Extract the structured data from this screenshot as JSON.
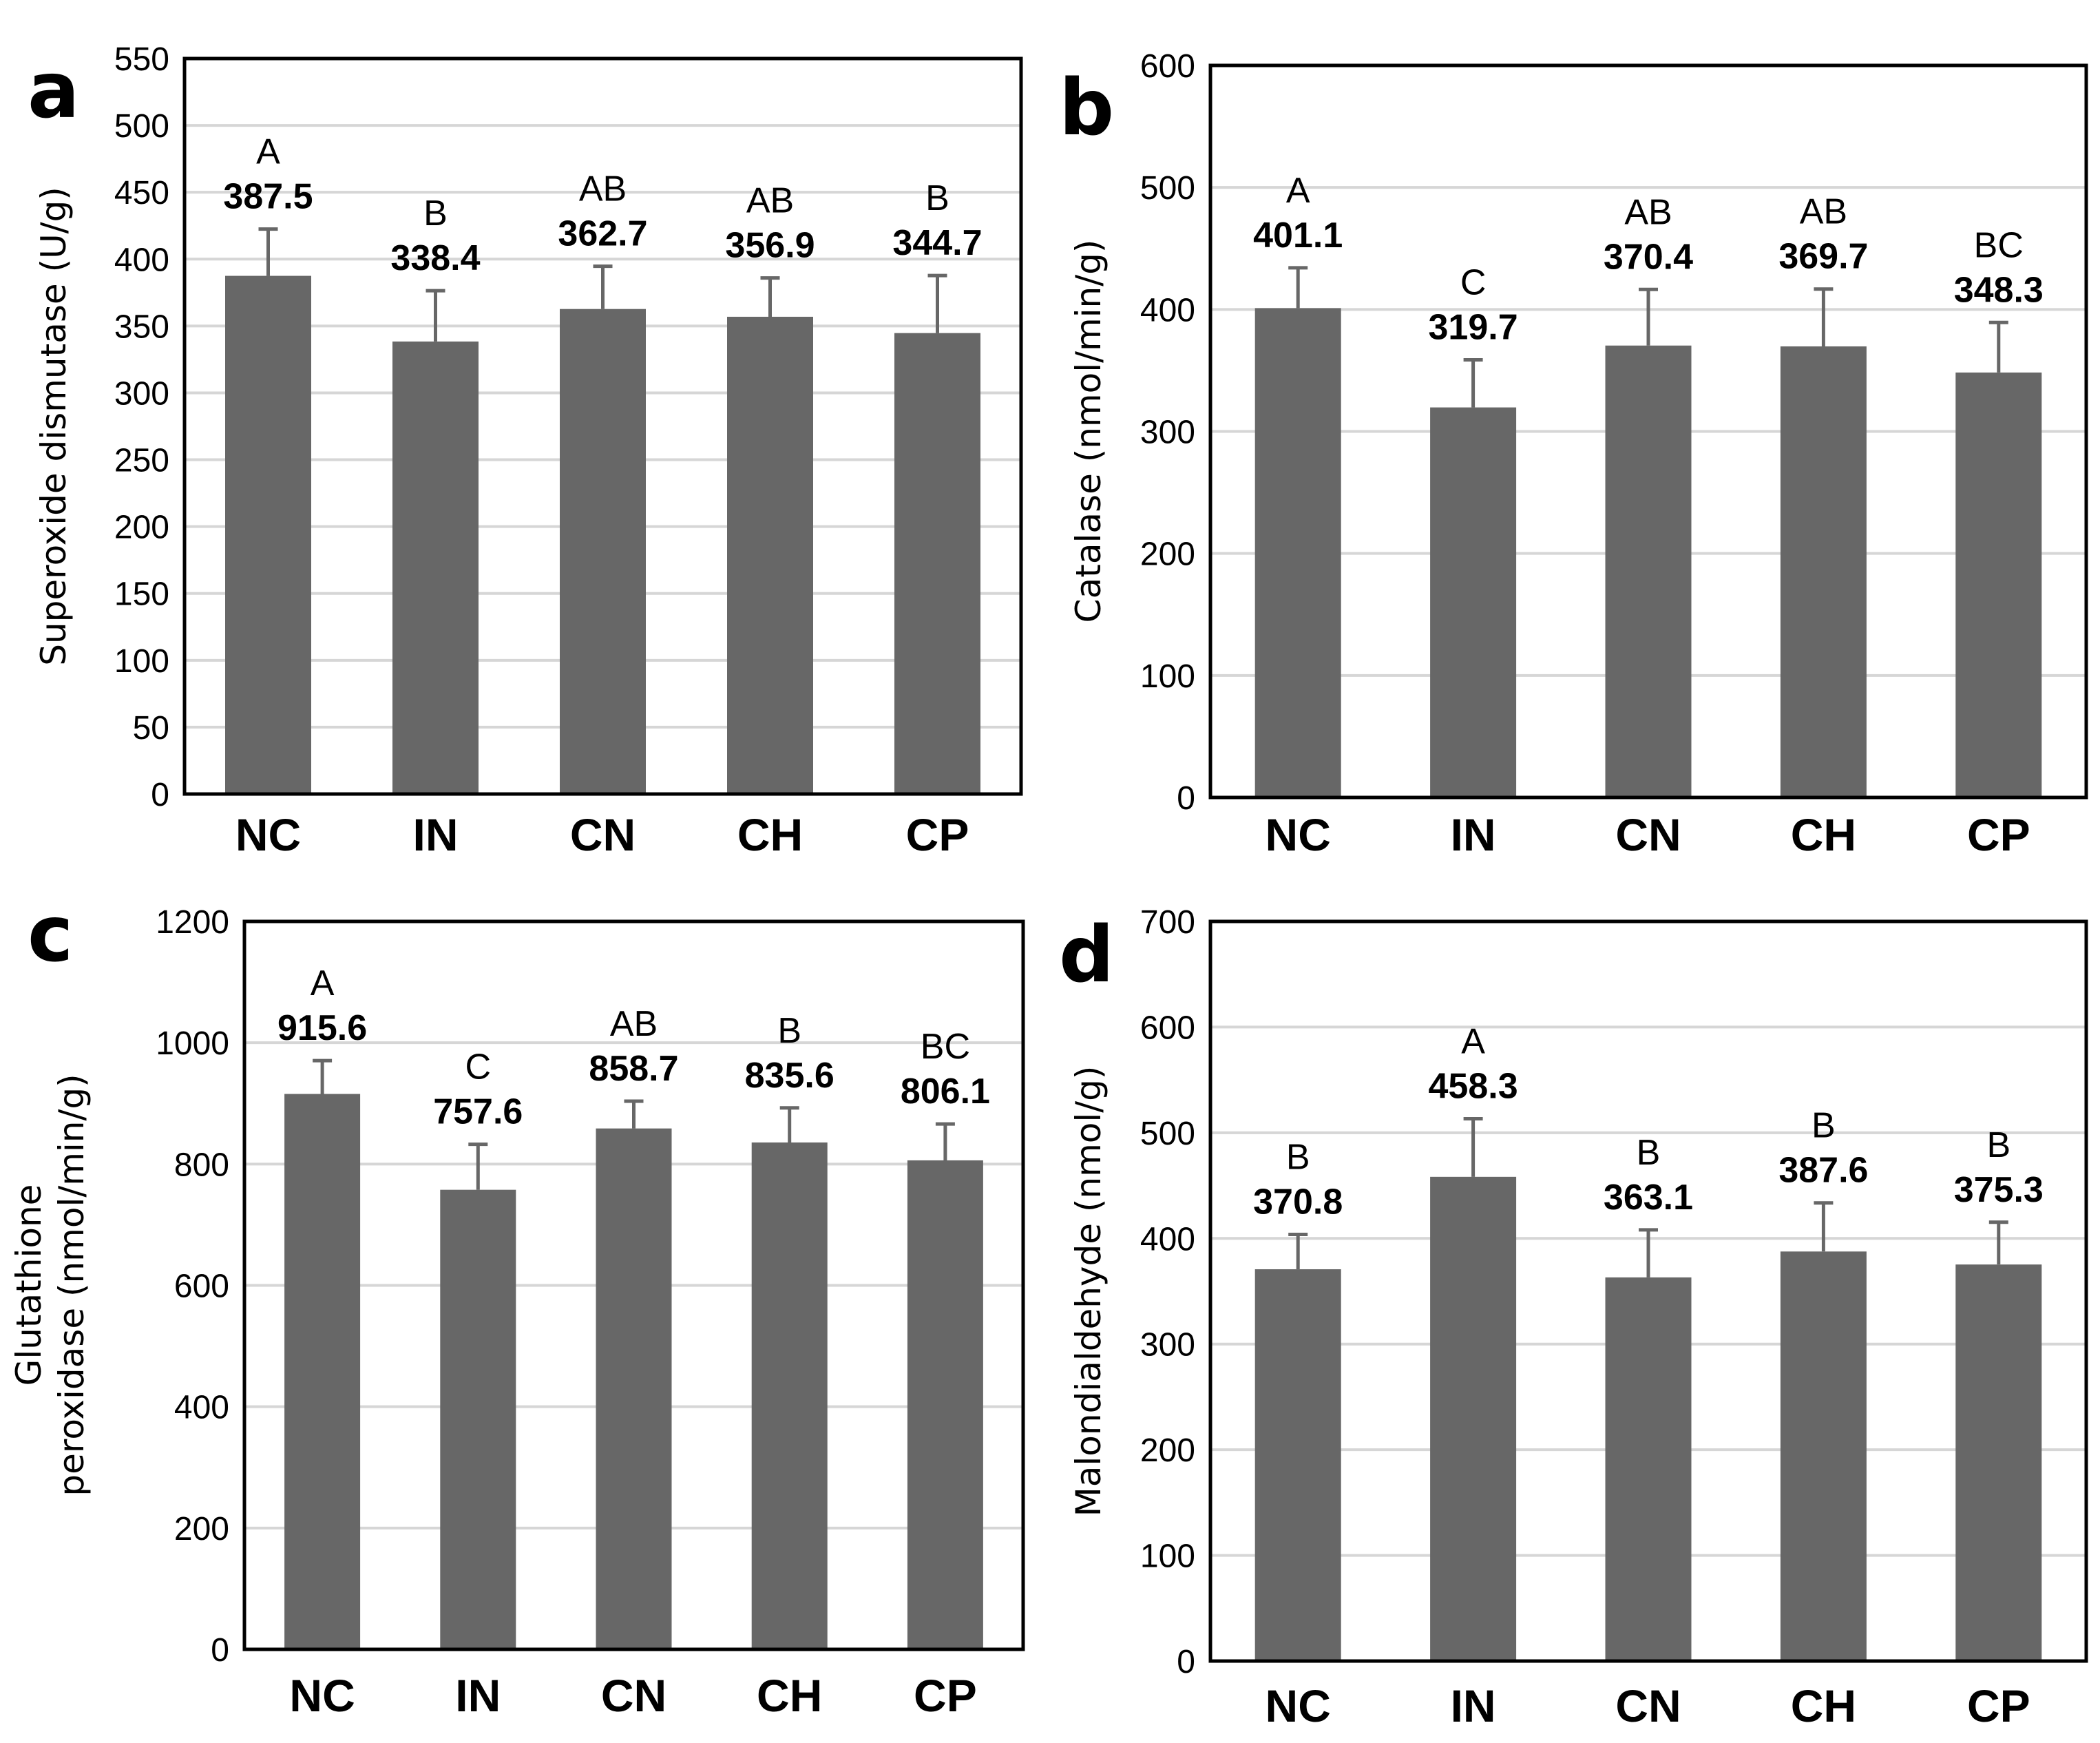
{
  "colors": {
    "bar": "#676767",
    "grid": "#d6d6d6",
    "axis": "#000000"
  },
  "chart_data": [
    {
      "type": "bar",
      "panel": "a",
      "ylabel": "Superoxide dismutase (U/g)",
      "ylabel_lines": [
        "Superoxide dismutase (U/g)"
      ],
      "categories": [
        "NC",
        "IN",
        "CN",
        "CH",
        "CP"
      ],
      "values": [
        387.5,
        338.4,
        362.7,
        356.9,
        344.7
      ],
      "value_labels": [
        "387.5",
        "338.4",
        "362.7",
        "356.9",
        "344.7"
      ],
      "errors": [
        35,
        38,
        32,
        29,
        43
      ],
      "groups": [
        "A",
        "B",
        "AB",
        "AB",
        "B"
      ],
      "ylim": [
        0,
        550
      ],
      "yticks": [
        0,
        50,
        100,
        150,
        200,
        250,
        300,
        350,
        400,
        450,
        500,
        550
      ],
      "ytick_labels": [
        "0",
        "50",
        "100",
        "150",
        "200",
        "250",
        "300",
        "350",
        "400",
        "450",
        "500",
        "550"
      ],
      "grid": true
    },
    {
      "type": "bar",
      "panel": "b",
      "ylabel": "Catalase (nmol/min/g)",
      "ylabel_lines": [
        "Catalase (nmol/min/g)"
      ],
      "categories": [
        "NC",
        "IN",
        "CN",
        "CH",
        "CP"
      ],
      "values": [
        401.1,
        319.7,
        370.4,
        369.7,
        348.3
      ],
      "value_labels": [
        "401.1",
        "319.7",
        "370.4",
        "369.7",
        "348.3"
      ],
      "errors": [
        33,
        39,
        46,
        47,
        41
      ],
      "groups": [
        "A",
        "C",
        "AB",
        "AB",
        "BC"
      ],
      "ylim": [
        0,
        600
      ],
      "yticks": [
        0,
        100,
        200,
        300,
        400,
        500,
        600
      ],
      "ytick_labels": [
        "0",
        "100",
        "200",
        "300",
        "400",
        "500",
        "600"
      ],
      "grid": true
    },
    {
      "type": "bar",
      "panel": "c",
      "ylabel": "Glutathione peroxidase (nmol/min/g)",
      "ylabel_lines": [
        "Glutathione",
        "peroxidase (nmol/min/g)"
      ],
      "categories": [
        "NC",
        "IN",
        "CN",
        "CH",
        "CP"
      ],
      "values": [
        915.6,
        757.6,
        858.7,
        835.6,
        806.1
      ],
      "value_labels": [
        "915.6",
        "757.6",
        "858.7",
        "835.6",
        "806.1"
      ],
      "errors": [
        55,
        75,
        45,
        57,
        60
      ],
      "groups": [
        "A",
        "C",
        "AB",
        "B",
        "BC"
      ],
      "ylim": [
        0,
        1200
      ],
      "yticks": [
        0,
        200,
        400,
        600,
        800,
        1000,
        1200
      ],
      "ytick_labels": [
        "0",
        "200",
        "400",
        "600",
        "800",
        "1000",
        "1200"
      ],
      "grid": true
    },
    {
      "type": "bar",
      "panel": "d",
      "ylabel": "Malondialdehyde (nmol/g)",
      "ylabel_lines": [
        "Malondialdehyde (nmol/g)"
      ],
      "categories": [
        "NC",
        "IN",
        "CN",
        "CH",
        "CP"
      ],
      "values": [
        370.8,
        458.3,
        363.1,
        387.6,
        375.3
      ],
      "value_labels": [
        "370.8",
        "458.3",
        "363.1",
        "387.6",
        "375.3"
      ],
      "errors": [
        33,
        55,
        45,
        46,
        40
      ],
      "groups": [
        "B",
        "A",
        "B",
        "B",
        "B"
      ],
      "ylim": [
        0,
        700
      ],
      "yticks": [
        0,
        100,
        200,
        300,
        400,
        500,
        600,
        700
      ],
      "ytick_labels": [
        "0",
        "100",
        "200",
        "300",
        "400",
        "500",
        "600",
        "700"
      ],
      "grid": true
    }
  ]
}
